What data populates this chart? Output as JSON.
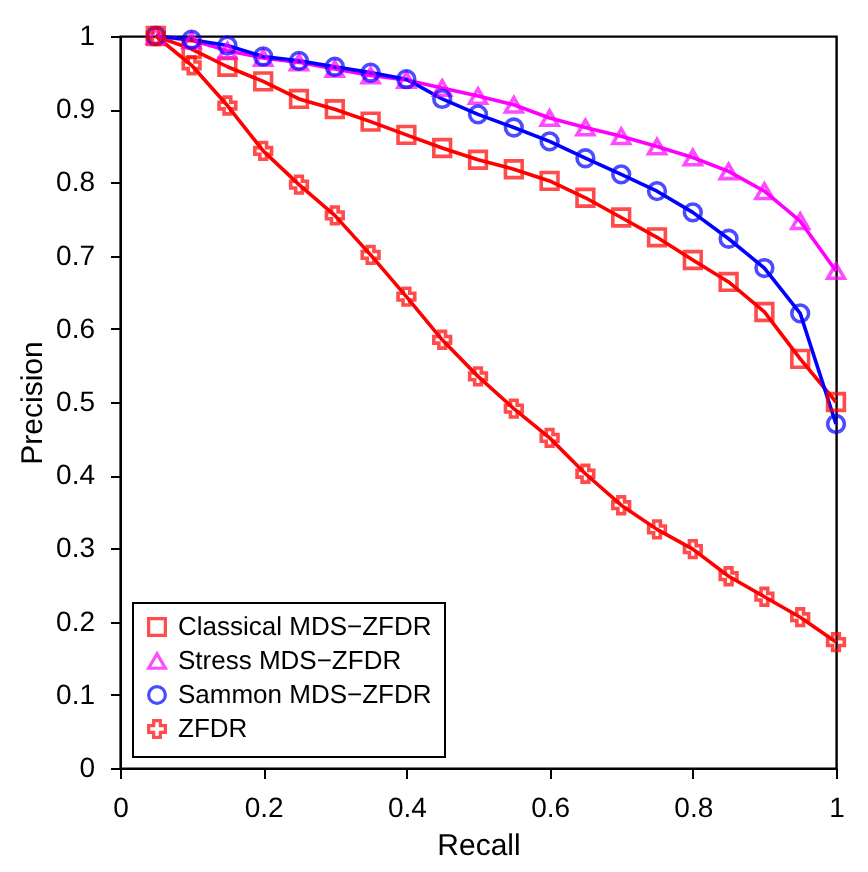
{
  "chart_data": {
    "type": "line",
    "xlabel": "Recall",
    "ylabel": "Precision",
    "x": [
      0.05,
      0.1,
      0.15,
      0.2,
      0.25,
      0.3,
      0.35,
      0.4,
      0.45,
      0.5,
      0.55,
      0.6,
      0.65,
      0.7,
      0.75,
      0.8,
      0.85,
      0.9,
      0.95,
      1.0
    ],
    "series": [
      {
        "name": "Classical MDS−ZFDR",
        "color": "#ff0000",
        "marker": "square",
        "values": [
          1.0,
          0.982,
          0.958,
          0.938,
          0.914,
          0.9,
          0.883,
          0.865,
          0.847,
          0.831,
          0.818,
          0.802,
          0.779,
          0.752,
          0.725,
          0.694,
          0.664,
          0.623,
          0.559,
          0.5
        ]
      },
      {
        "name": "Stress MDS−ZFDR",
        "color": "#ff00ff",
        "marker": "triangle",
        "values": [
          1.0,
          0.994,
          0.98,
          0.97,
          0.964,
          0.955,
          0.946,
          0.94,
          0.929,
          0.918,
          0.906,
          0.888,
          0.875,
          0.863,
          0.849,
          0.834,
          0.815,
          0.788,
          0.747,
          0.679
        ]
      },
      {
        "name": "Sammon MDS−ZFDR",
        "color": "#0000ff",
        "marker": "circle",
        "values": [
          1.0,
          0.995,
          0.987,
          0.972,
          0.966,
          0.958,
          0.95,
          0.941,
          0.914,
          0.893,
          0.875,
          0.856,
          0.833,
          0.811,
          0.788,
          0.759,
          0.723,
          0.683,
          0.621,
          0.47
        ]
      },
      {
        "name": "ZFDR",
        "color": "#ff0000",
        "marker": "cross",
        "values": [
          1.0,
          0.96,
          0.905,
          0.843,
          0.797,
          0.755,
          0.701,
          0.644,
          0.585,
          0.535,
          0.491,
          0.451,
          0.402,
          0.359,
          0.326,
          0.299,
          0.262,
          0.234,
          0.206,
          0.172
        ]
      }
    ],
    "xlim": [
      0,
      1
    ],
    "xticks": [
      0,
      0.2,
      0.4,
      0.6,
      0.8,
      1
    ],
    "ylim": [
      0,
      1
    ],
    "yticks": [
      0,
      0.1,
      0.2,
      0.3,
      0.4,
      0.5,
      0.6,
      0.7,
      0.8,
      0.9,
      1
    ],
    "grid": false,
    "legend": "bottom left",
    "line_style": "solid"
  }
}
